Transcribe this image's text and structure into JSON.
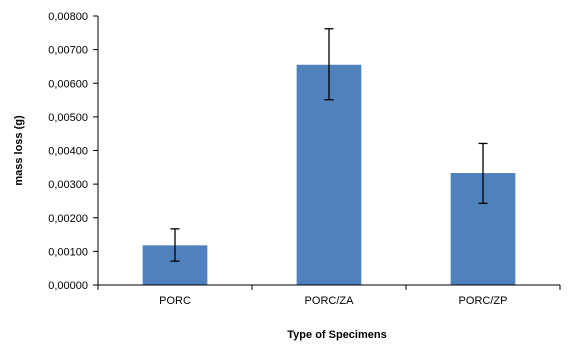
{
  "chart_data": {
    "type": "bar",
    "title": "",
    "xlabel": "Type of Specimens",
    "ylabel": "mass loss (g)",
    "categories": [
      "PORC",
      "PORC/ZA",
      "PORC/ZP"
    ],
    "values": [
      0.00118,
      0.00655,
      0.00333
    ],
    "error_bars": [
      {
        "low": 0.00071,
        "high": 0.00167
      },
      {
        "low": 0.00551,
        "high": 0.00762
      },
      {
        "low": 0.00243,
        "high": 0.00421
      }
    ],
    "ylim": [
      0,
      0.008
    ],
    "yticks": [
      0,
      0.001,
      0.002,
      0.003,
      0.004,
      0.005,
      0.006,
      0.007,
      0.008
    ],
    "ytick_labels": [
      "0,00000",
      "0,00100",
      "0,00200",
      "0,00300",
      "0,00400",
      "0,00500",
      "0,00600",
      "0,00700",
      "0,00800"
    ],
    "grid": false,
    "bar_color": "#4f81bd",
    "error_bar_color": "#000000"
  }
}
